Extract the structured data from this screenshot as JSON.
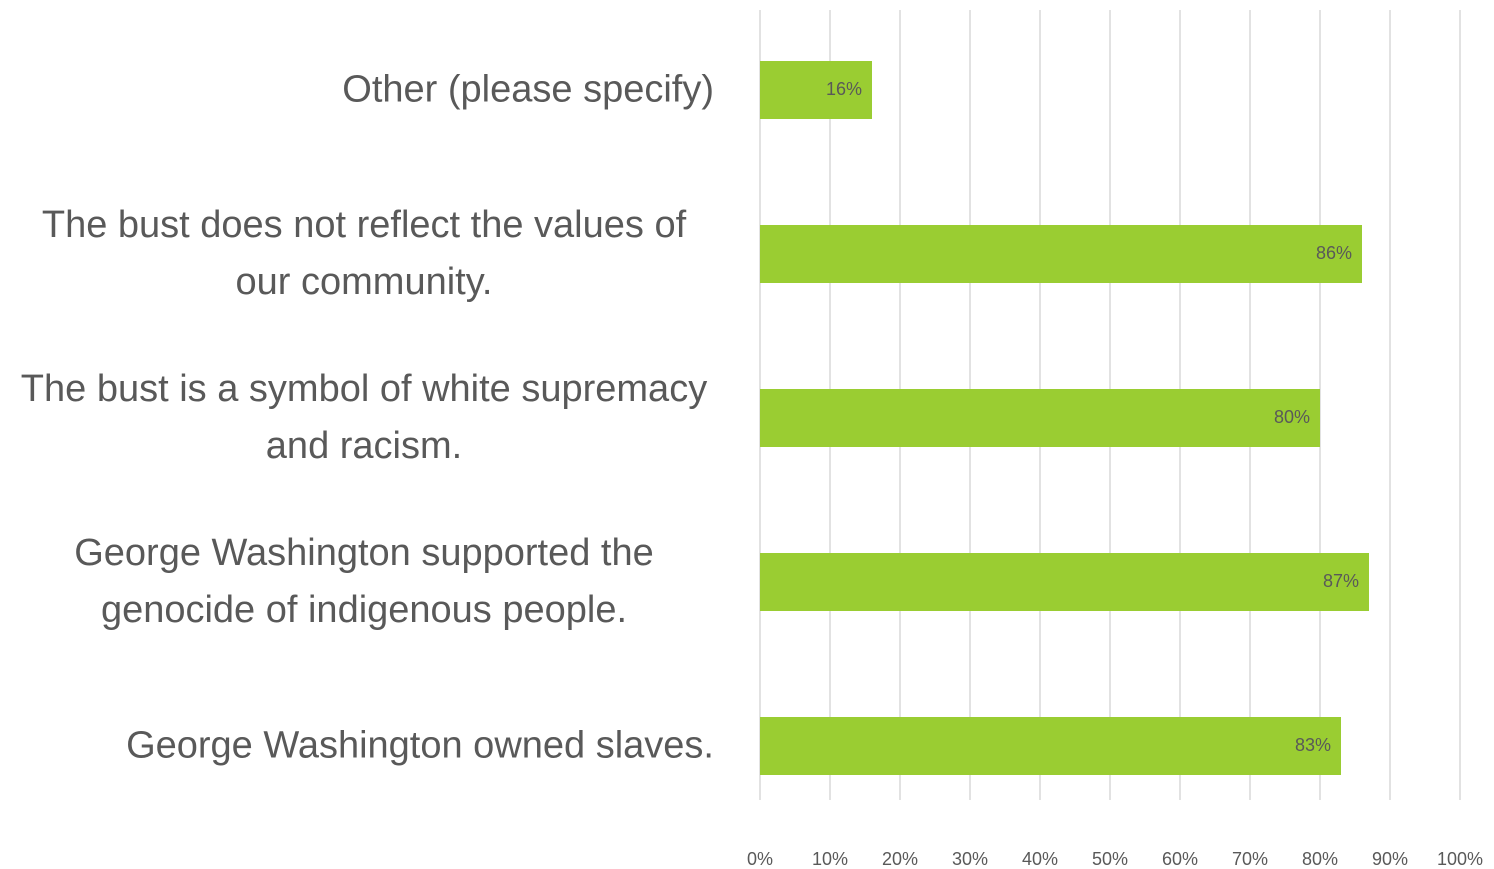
{
  "chart_data": {
    "type": "hbar",
    "categories": [
      "Other (please specify)",
      "The bust does not reflect the values of our community.",
      "The bust is a symbol of white supremacy and racism.",
      "George Washington supported the genocide of indigenous people.",
      "George Washington owned slaves."
    ],
    "values": [
      16,
      86,
      80,
      87,
      83
    ],
    "value_labels": [
      "16%",
      "86%",
      "80%",
      "87%",
      "83%"
    ],
    "color": "#9acd32",
    "xlim": [
      0,
      100
    ],
    "xticks": [
      {
        "value": 0,
        "label": "0%"
      },
      {
        "value": 10,
        "label": "10%"
      },
      {
        "value": 20,
        "label": "20%"
      },
      {
        "value": 30,
        "label": "30%"
      },
      {
        "value": 40,
        "label": "40%"
      },
      {
        "value": 50,
        "label": "50%"
      },
      {
        "value": 60,
        "label": "60%"
      },
      {
        "value": 70,
        "label": "70%"
      },
      {
        "value": 80,
        "label": "80%"
      },
      {
        "value": 90,
        "label": "90%"
      },
      {
        "value": 100,
        "label": "100%"
      }
    ],
    "grid": true
  }
}
